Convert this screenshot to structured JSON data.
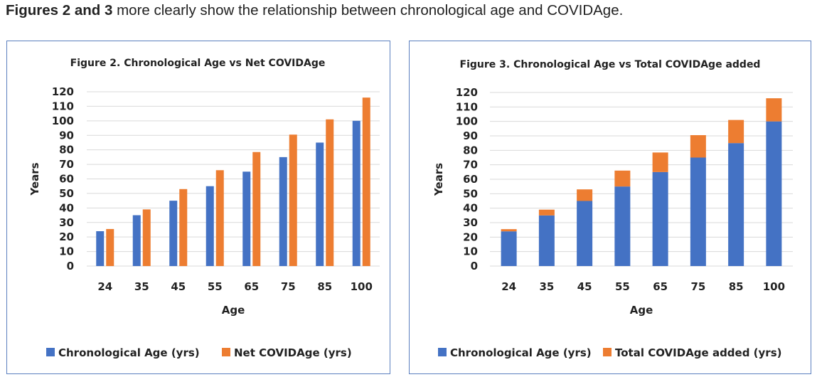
{
  "heading": {
    "bold_part": "Figures 2 and 3",
    "rest": " more clearly show the relationship between chronological age and COVIDAge."
  },
  "colors": {
    "blue": "#4472c4",
    "orange": "#ed7d31",
    "grid": "#d9d9d9",
    "border": "#5b7fbf"
  },
  "chart_data": [
    {
      "type": "bar",
      "stacking": "grouped",
      "title": "Figure 2.  Chronological Age vs Net COVIDAge",
      "xlabel": "Age",
      "ylabel": "Years",
      "categories": [
        "24",
        "35",
        "45",
        "55",
        "65",
        "75",
        "85",
        "100"
      ],
      "ylim": [
        0,
        120
      ],
      "yticks": [
        0,
        10,
        20,
        30,
        40,
        50,
        60,
        70,
        80,
        90,
        100,
        110,
        120
      ],
      "grid": true,
      "legend_position": "bottom",
      "series": [
        {
          "name": "Chronological Age (yrs)",
          "color": "#4472c4",
          "values": [
            24,
            35,
            45,
            55,
            65,
            75,
            85,
            100
          ]
        },
        {
          "name": "Net COVIDAge (yrs)",
          "color": "#ed7d31",
          "values": [
            25.5,
            39,
            53,
            66,
            78.5,
            90.5,
            101,
            116
          ]
        }
      ]
    },
    {
      "type": "bar",
      "stacking": "stacked",
      "title": "Figure 3.  Chronological Age vs Total COVIDAge added",
      "xlabel": "Age",
      "ylabel": "Years",
      "categories": [
        "24",
        "35",
        "45",
        "55",
        "65",
        "75",
        "85",
        "100"
      ],
      "ylim": [
        0,
        120
      ],
      "yticks": [
        0,
        10,
        20,
        30,
        40,
        50,
        60,
        70,
        80,
        90,
        100,
        110,
        120
      ],
      "grid": true,
      "legend_position": "bottom",
      "series": [
        {
          "name": "Chronological Age (yrs)",
          "color": "#4472c4",
          "values": [
            24,
            35,
            45,
            55,
            65,
            75,
            85,
            100
          ]
        },
        {
          "name": "Total COVIDAge added (yrs)",
          "color": "#ed7d31",
          "values": [
            1.5,
            4,
            8,
            11,
            13.5,
            15.5,
            16,
            16
          ]
        }
      ]
    }
  ]
}
